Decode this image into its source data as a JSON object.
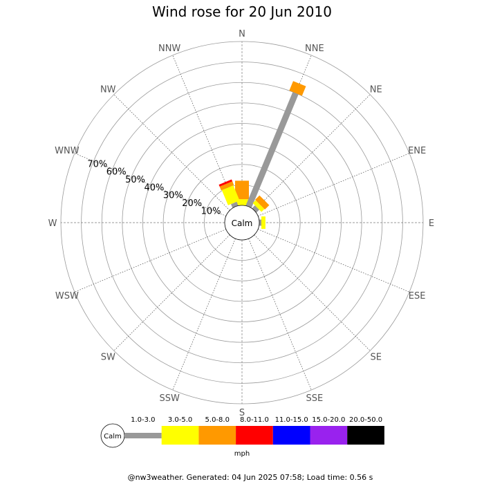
{
  "chart_data": {
    "type": "wind-rose",
    "title": "Wind rose for 20 Jun 2010",
    "directions": [
      "N",
      "NNE",
      "NE",
      "ENE",
      "E",
      "ESE",
      "SE",
      "SSE",
      "S",
      "SSW",
      "SW",
      "WSW",
      "W",
      "WNW",
      "NW",
      "NNW"
    ],
    "ring_labels": [
      "10%",
      "20%",
      "30%",
      "40%",
      "50%",
      "60%",
      "70%"
    ],
    "rmax": 80,
    "calm_label": "Calm",
    "speed_bins": [
      {
        "name": "1.0-3.0",
        "color": "#999999"
      },
      {
        "name": "3.0-5.0",
        "color": "#ffff00"
      },
      {
        "name": "5.0-8.0",
        "color": "#ff9900"
      },
      {
        "name": "8.0-11.0",
        "color": "#ff0000"
      },
      {
        "name": "11.0-15.0",
        "color": "#0000ff"
      },
      {
        "name": "15.0-20.0",
        "color": "#9922ee"
      },
      {
        "name": "20.0-50.0",
        "color": "#000000"
      }
    ],
    "unit": "mph",
    "series": [
      {
        "direction": "N",
        "values": [
          0,
          3,
          9,
          0,
          0,
          0,
          0
        ]
      },
      {
        "direction": "NNE",
        "values": [
          60,
          0,
          5,
          0,
          0,
          0,
          0
        ]
      },
      {
        "direction": "NE",
        "values": [
          2,
          2,
          3,
          0,
          0,
          0,
          0
        ]
      },
      {
        "direction": "ENE",
        "values": [
          0,
          0,
          0,
          0,
          0,
          0,
          0
        ]
      },
      {
        "direction": "E",
        "values": [
          1,
          2,
          0,
          0,
          0,
          0,
          0
        ]
      },
      {
        "direction": "ESE",
        "values": [
          0,
          0,
          0,
          0,
          0,
          0,
          0
        ]
      },
      {
        "direction": "SE",
        "values": [
          0,
          0,
          0,
          0,
          0,
          0,
          0
        ]
      },
      {
        "direction": "SSE",
        "values": [
          0,
          0,
          0,
          0,
          0,
          0,
          0
        ]
      },
      {
        "direction": "S",
        "values": [
          0,
          0,
          0,
          0,
          0,
          0,
          0
        ]
      },
      {
        "direction": "SSW",
        "values": [
          0,
          0,
          0,
          0,
          0,
          0,
          0
        ]
      },
      {
        "direction": "SW",
        "values": [
          0,
          0,
          0,
          0,
          0,
          0,
          0
        ]
      },
      {
        "direction": "WSW",
        "values": [
          0,
          0,
          0,
          0,
          0,
          0,
          0
        ]
      },
      {
        "direction": "W",
        "values": [
          0,
          0,
          0,
          0,
          0,
          0,
          0
        ]
      },
      {
        "direction": "WNW",
        "values": [
          0,
          0,
          0,
          0,
          0,
          0,
          0
        ]
      },
      {
        "direction": "NW",
        "values": [
          0,
          0,
          0,
          0,
          0,
          0,
          0
        ]
      },
      {
        "direction": "NNW",
        "values": [
          2,
          8,
          2,
          1,
          0,
          0,
          0
        ]
      }
    ]
  },
  "footer": "@nw3weather. Generated: 04 Jun 2025 07:58; Load time: 0.56 s"
}
